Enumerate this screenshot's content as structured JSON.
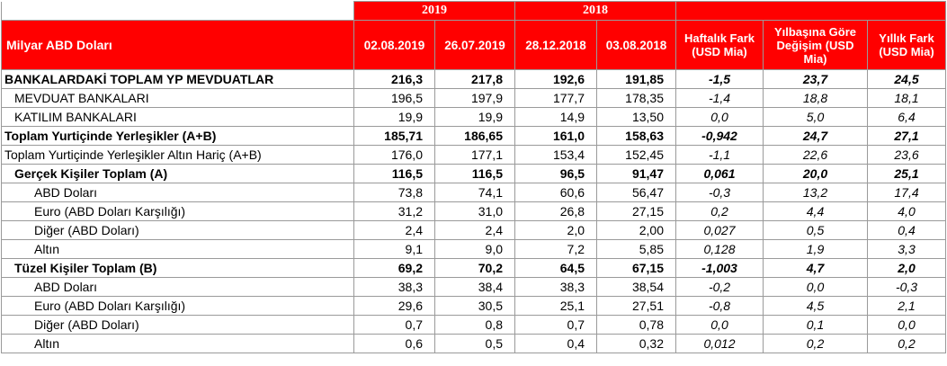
{
  "header": {
    "title": "Milyar ABD Doları",
    "year_2019": "2019",
    "year_2018": "2018",
    "dates": [
      "02.08.2019",
      "26.07.2019",
      "28.12.2018",
      "03.08.2018"
    ],
    "weekly_diff": "Haftalık Fark (USD Mia)",
    "ytd_change": "Yılbaşına Göre Değişim (USD Mia)",
    "annual_diff": "Yıllık Fark (USD Mia)"
  },
  "rows": [
    {
      "label": "BANKALARDAKİ TOPLAM YP MEVDUATLAR",
      "indent": 0,
      "bold": true,
      "cells": [
        "216,3",
        "217,8",
        "192,6",
        "191,85",
        "-1,5",
        "23,7",
        "24,5"
      ]
    },
    {
      "label": "MEVDUAT BANKALARI",
      "indent": 1,
      "bold": false,
      "cells": [
        "196,5",
        "197,9",
        "177,7",
        "178,35",
        "-1,4",
        "18,8",
        "18,1"
      ]
    },
    {
      "label": "KATILIM BANKALARI",
      "indent": 1,
      "bold": false,
      "cells": [
        "19,9",
        "19,9",
        "14,9",
        "13,50",
        "0,0",
        "5,0",
        "6,4"
      ]
    },
    {
      "label": "Toplam Yurtiçinde Yerleşikler (A+B)",
      "indent": 0,
      "bold": true,
      "cells": [
        "185,71",
        "186,65",
        "161,0",
        "158,63",
        "-0,942",
        "24,7",
        "27,1"
      ]
    },
    {
      "label": "Toplam Yurtiçinde Yerleşikler Altın Hariç (A+B)",
      "indent": 0,
      "bold": false,
      "cells": [
        "176,0",
        "177,1",
        "153,4",
        "152,45",
        "-1,1",
        "22,6",
        "23,6"
      ]
    },
    {
      "label": "Gerçek Kişiler Toplam (A)",
      "indent": 1,
      "bold": true,
      "cells": [
        "116,5",
        "116,5",
        "96,5",
        "91,47",
        "0,061",
        "20,0",
        "25,1"
      ]
    },
    {
      "label": "ABD Doları",
      "indent": 2,
      "bold": false,
      "cells": [
        "73,8",
        "74,1",
        "60,6",
        "56,47",
        "-0,3",
        "13,2",
        "17,4"
      ]
    },
    {
      "label": "Euro (ABD Doları Karşılığı)",
      "indent": 2,
      "bold": false,
      "cells": [
        "31,2",
        "31,0",
        "26,8",
        "27,15",
        "0,2",
        "4,4",
        "4,0"
      ]
    },
    {
      "label": "Diğer (ABD Doları)",
      "indent": 2,
      "bold": false,
      "cells": [
        "2,4",
        "2,4",
        "2,0",
        "2,00",
        "0,027",
        "0,5",
        "0,4"
      ]
    },
    {
      "label": "Altın",
      "indent": 2,
      "bold": false,
      "cells": [
        "9,1",
        "9,0",
        "7,2",
        "5,85",
        "0,128",
        "1,9",
        "3,3"
      ]
    },
    {
      "label": "Tüzel Kişiler Toplam (B)",
      "indent": 1,
      "bold": true,
      "cells": [
        "69,2",
        "70,2",
        "64,5",
        "67,15",
        "-1,003",
        "4,7",
        "2,0"
      ]
    },
    {
      "label": "ABD Doları",
      "indent": 2,
      "bold": false,
      "cells": [
        "38,3",
        "38,4",
        "38,3",
        "38,54",
        "-0,2",
        "0,0",
        "-0,3"
      ]
    },
    {
      "label": "Euro (ABD Doları Karşılığı)",
      "indent": 2,
      "bold": false,
      "cells": [
        "29,6",
        "30,5",
        "25,1",
        "27,51",
        "-0,8",
        "4,5",
        "2,1"
      ]
    },
    {
      "label": "Diğer (ABD Doları)",
      "indent": 2,
      "bold": false,
      "cells": [
        "0,7",
        "0,8",
        "0,7",
        "0,78",
        "0,0",
        "0,1",
        "0,0"
      ]
    },
    {
      "label": "Altın",
      "indent": 2,
      "bold": false,
      "cells": [
        "0,6",
        "0,5",
        "0,4",
        "0,32",
        "0,012",
        "0,2",
        "0,2"
      ]
    }
  ],
  "colors": {
    "header_bg": "#ff0000",
    "header_text": "#ffffff",
    "grid": "#9a9a9a"
  }
}
